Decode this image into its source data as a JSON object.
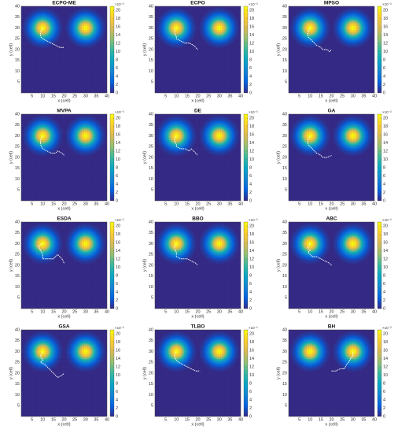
{
  "axes": {
    "xlabel": "x (cell)",
    "ylabel": "y (cell)",
    "xlim": [
      0,
      40
    ],
    "ylim": [
      0,
      40
    ],
    "xticks": [
      5,
      10,
      15,
      20,
      25,
      30,
      35,
      40
    ],
    "yticks": [
      5,
      10,
      15,
      20,
      25,
      30,
      35,
      40
    ],
    "clim": [
      0,
      21
    ],
    "cticks": [
      0,
      2,
      4,
      6,
      8,
      10,
      12,
      14,
      16,
      18,
      20
    ],
    "cexponent": "×10⁻³",
    "colormap": [
      "#352a87",
      "#0363e1",
      "#1485d4",
      "#06a7c6",
      "#38b99e",
      "#92bf73",
      "#d9ba56",
      "#fcce2e",
      "#f9fb0e"
    ],
    "targets": [
      {
        "x": 10,
        "y": 30,
        "peak": 21,
        "radius": 3.2
      },
      {
        "x": 30,
        "y": 30,
        "peak": 21,
        "radius": 3.2
      }
    ],
    "path_color": "#ffffff"
  },
  "chart_data": [
    {
      "type": "path",
      "title": "ECPO-ME",
      "x": [
        10,
        9,
        9,
        10,
        12,
        14,
        16,
        18,
        20
      ],
      "y": [
        30,
        28,
        26,
        25,
        24,
        23,
        22,
        21,
        21
      ]
    },
    {
      "type": "path",
      "title": "ECPO",
      "x": [
        10,
        9,
        10,
        10,
        12,
        14,
        16,
        18,
        20
      ],
      "y": [
        30,
        28,
        26,
        25,
        24,
        23,
        23,
        22,
        20
      ]
    },
    {
      "type": "path",
      "title": "MPSO",
      "x": [
        10,
        9,
        9,
        11,
        13,
        15,
        16,
        18,
        19,
        20
      ],
      "y": [
        30,
        28,
        26,
        24,
        22,
        21,
        20,
        20,
        19,
        20
      ]
    },
    {
      "type": "path",
      "title": "MVPA",
      "x": [
        10,
        9,
        9,
        10,
        12,
        14,
        16,
        17,
        19,
        20
      ],
      "y": [
        30,
        28,
        26,
        24,
        23,
        22,
        22,
        23,
        22,
        21
      ]
    },
    {
      "type": "path",
      "title": "DE",
      "x": [
        10,
        9,
        10,
        10,
        12,
        14,
        16,
        17,
        19,
        20
      ],
      "y": [
        30,
        28,
        26,
        25,
        24,
        24,
        23,
        24,
        22,
        21
      ]
    },
    {
      "type": "path",
      "title": "GA",
      "x": [
        10,
        9,
        9,
        11,
        13,
        15,
        16,
        18,
        20
      ],
      "y": [
        30,
        28,
        26,
        24,
        22,
        21,
        20,
        20,
        21
      ]
    },
    {
      "type": "path",
      "title": "ESDA",
      "x": [
        10,
        8,
        9,
        10,
        10,
        12,
        15,
        17,
        19,
        20
      ],
      "y": [
        30,
        29,
        27,
        25,
        23,
        23,
        23,
        25,
        23,
        21
      ]
    },
    {
      "type": "path",
      "title": "BBO",
      "x": [
        10,
        9,
        10,
        10,
        12,
        15,
        17,
        19,
        20
      ],
      "y": [
        30,
        28,
        26,
        24,
        23,
        23,
        22,
        21,
        20
      ]
    },
    {
      "type": "path",
      "title": "ABC",
      "x": [
        10,
        9,
        10,
        9,
        11,
        13,
        15,
        17,
        19,
        20
      ],
      "y": [
        30,
        28,
        27,
        26,
        24,
        24,
        23,
        22,
        21,
        20
      ]
    },
    {
      "type": "path",
      "title": "GSA",
      "x": [
        10,
        9,
        10,
        9,
        11,
        13,
        15,
        17,
        19,
        20
      ],
      "y": [
        30,
        28,
        26,
        25,
        24,
        22,
        20,
        18,
        19,
        20
      ]
    },
    {
      "type": "path",
      "title": "TLBO",
      "x": [
        10,
        9,
        10,
        11,
        13,
        15,
        17,
        19,
        21
      ],
      "y": [
        30,
        28,
        26,
        25,
        24,
        23,
        22,
        21,
        21
      ]
    },
    {
      "type": "path",
      "title": "BH",
      "x": [
        20,
        22,
        24,
        26,
        27,
        28,
        29,
        30,
        30
      ],
      "y": [
        21,
        21,
        22,
        22,
        24,
        25,
        27,
        28,
        30
      ]
    }
  ]
}
